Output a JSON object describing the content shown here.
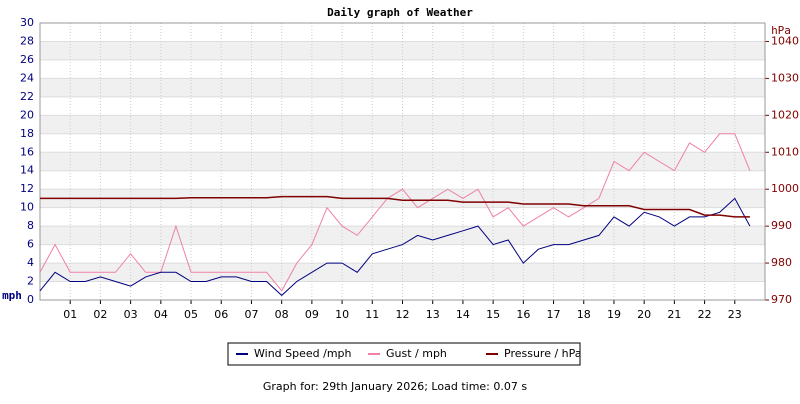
{
  "chart_data": {
    "type": "line",
    "title": "Daily graph of Weather",
    "y_label": "mph",
    "y2_label": "hPa",
    "footer": "Graph for: 29th January 2026; Load time: 0.07 s",
    "x": [
      0,
      0.5,
      1,
      1.5,
      2,
      2.5,
      3,
      3.5,
      4,
      4.5,
      5,
      5.5,
      6,
      6.5,
      7,
      7.5,
      8,
      8.5,
      9,
      9.5,
      10,
      10.5,
      11,
      11.5,
      12,
      12.5,
      13,
      13.5,
      14,
      14.5,
      15,
      15.5,
      16,
      16.5,
      17,
      17.5,
      18,
      18.5,
      19,
      19.5,
      20,
      20.5,
      21,
      21.5,
      22,
      22.5,
      23,
      23.5
    ],
    "xlim": [
      0,
      24
    ],
    "xticks": [
      {
        "value": 1,
        "label": "01"
      },
      {
        "value": 2,
        "label": "02"
      },
      {
        "value": 3,
        "label": "03"
      },
      {
        "value": 4,
        "label": "04"
      },
      {
        "value": 5,
        "label": "05"
      },
      {
        "value": 6,
        "label": "06"
      },
      {
        "value": 7,
        "label": "07"
      },
      {
        "value": 8,
        "label": "08"
      },
      {
        "value": 9,
        "label": "09"
      },
      10,
      11,
      12,
      13,
      14,
      15,
      16,
      17,
      18,
      19,
      20,
      21,
      22,
      23
    ],
    "ylim": [
      0,
      30
    ],
    "yticks": [
      0,
      2,
      4,
      6,
      8,
      10,
      12,
      14,
      16,
      18,
      20,
      22,
      24,
      26,
      28,
      30
    ],
    "y2lim": [
      970,
      1045
    ],
    "y2ticks": [
      970,
      980,
      990,
      1000,
      1010,
      1020,
      1030,
      1040
    ],
    "grid": true,
    "legend": "bottom",
    "series": [
      {
        "name": "Wind Speed /mph",
        "color": "#000080",
        "values": [
          1,
          3,
          2,
          2,
          2.5,
          2,
          1.5,
          2.5,
          3,
          3,
          2,
          2,
          2.5,
          2.5,
          2,
          2,
          0.5,
          2,
          3,
          4,
          4,
          3,
          5,
          5.5,
          6,
          7,
          6.5,
          7,
          7.5,
          8,
          6,
          6.5,
          4,
          5.5,
          6,
          6,
          6.5,
          7,
          9,
          8,
          9.5,
          9,
          8,
          9,
          9,
          9.5,
          11,
          8
        ]
      },
      {
        "name": "Gust / mph",
        "color": "#f080a8",
        "values": [
          3,
          6,
          3,
          3,
          3,
          3,
          5,
          3,
          3,
          8,
          3,
          3,
          3,
          3,
          3,
          3,
          1,
          4,
          6,
          10,
          8,
          7,
          9,
          11,
          12,
          10,
          11,
          12,
          11,
          12,
          9,
          10,
          8,
          9,
          10,
          9,
          10,
          11,
          15,
          14,
          16,
          15,
          14,
          17,
          16,
          18,
          18,
          14
        ]
      },
      {
        "name": "Pressure / hPa",
        "color": "#800000",
        "axis": "y2",
        "values": [
          997.5,
          997.5,
          997.5,
          997.5,
          997.5,
          997.5,
          997.5,
          997.5,
          997.5,
          997.5,
          997.7,
          997.7,
          997.7,
          997.7,
          997.7,
          997.7,
          998,
          998,
          998,
          998,
          997.5,
          997.5,
          997.5,
          997.5,
          997,
          997,
          997,
          997,
          996.5,
          996.5,
          996.5,
          996.5,
          996,
          996,
          996,
          996,
          995.5,
          995.5,
          995.5,
          995.5,
          994.5,
          994.5,
          994.5,
          994.5,
          993,
          993,
          992.5,
          992.5
        ]
      }
    ]
  }
}
